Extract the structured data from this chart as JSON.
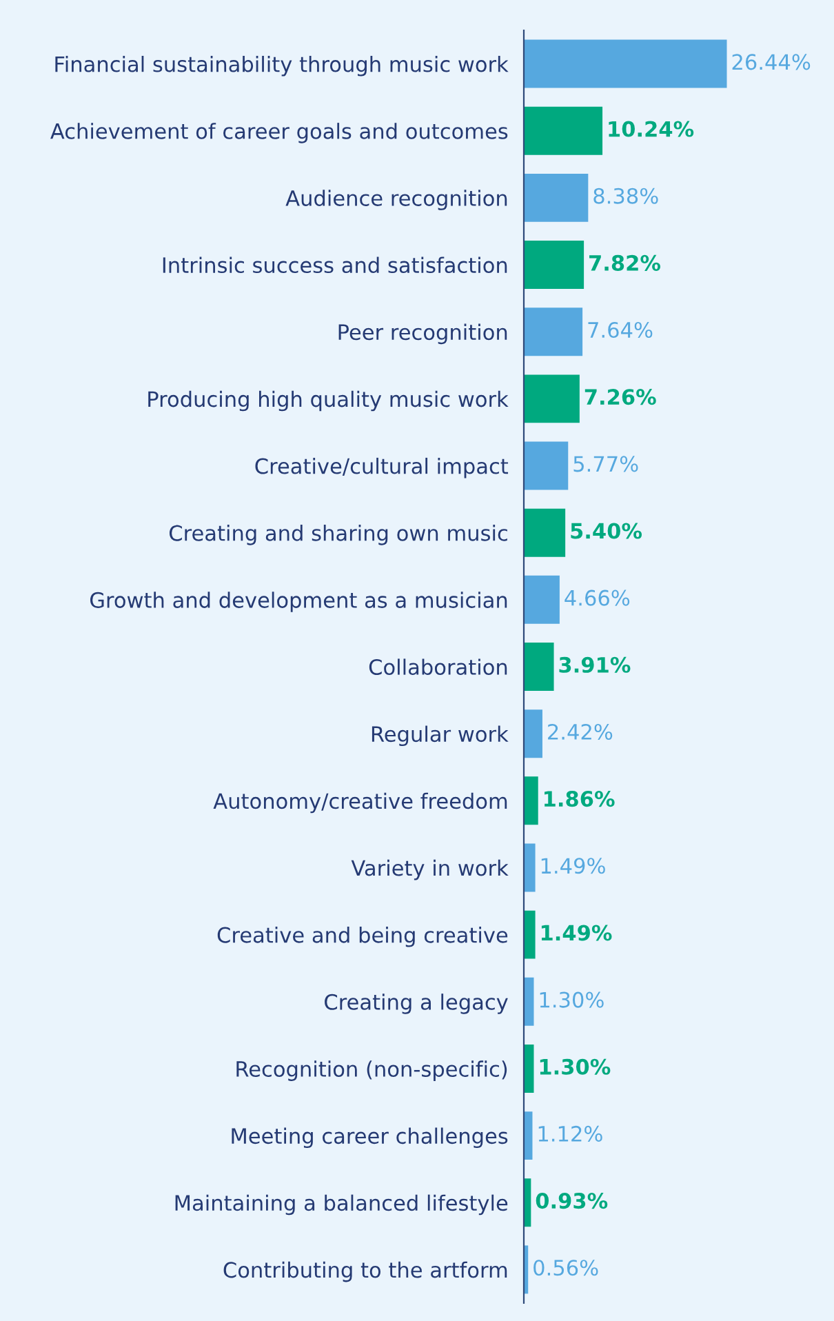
{
  "chart_data": {
    "type": "bar",
    "orientation": "horizontal",
    "categories": [
      "Financial sustainability through music work",
      "Achievement of career goals and outcomes",
      "Audience recognition",
      "Intrinsic success and satisfaction",
      "Peer recognition",
      "Producing high quality music work",
      "Creative/cultural impact",
      "Creating and sharing own music",
      "Growth and development as a musician",
      "Collaboration",
      "Regular work",
      "Autonomy/creative freedom",
      "Variety in work",
      "Creative and being creative",
      "Creating a legacy",
      "Recognition (non-specific)",
      "Meeting career challenges",
      "Maintaining a balanced lifestyle",
      "Contributing to the artform"
    ],
    "values": [
      26.44,
      10.24,
      8.38,
      7.82,
      7.64,
      7.26,
      5.77,
      5.4,
      4.66,
      3.91,
      2.42,
      1.86,
      1.49,
      1.49,
      1.3,
      1.3,
      1.12,
      0.93,
      0.56
    ],
    "colors": [
      "#56a8df",
      "#00a97f",
      "#56a8df",
      "#00a97f",
      "#56a8df",
      "#00a97f",
      "#56a8df",
      "#00a97f",
      "#56a8df",
      "#00a97f",
      "#56a8df",
      "#00a97f",
      "#56a8df",
      "#00a97f",
      "#56a8df",
      "#00a97f",
      "#56a8df",
      "#00a97f",
      "#56a8df"
    ],
    "value_labels": [
      "26.44%",
      "10.24%",
      "8.38%",
      "7.82%",
      "7.64%",
      "7.26%",
      "5.77%",
      "5.40%",
      "4.66%",
      "3.91%",
      "2.42%",
      "1.86%",
      "1.49%",
      "1.49%",
      "1.30%",
      "1.30%",
      "1.12%",
      "0.93%",
      "0.56%"
    ],
    "grid": false,
    "legend": false
  }
}
